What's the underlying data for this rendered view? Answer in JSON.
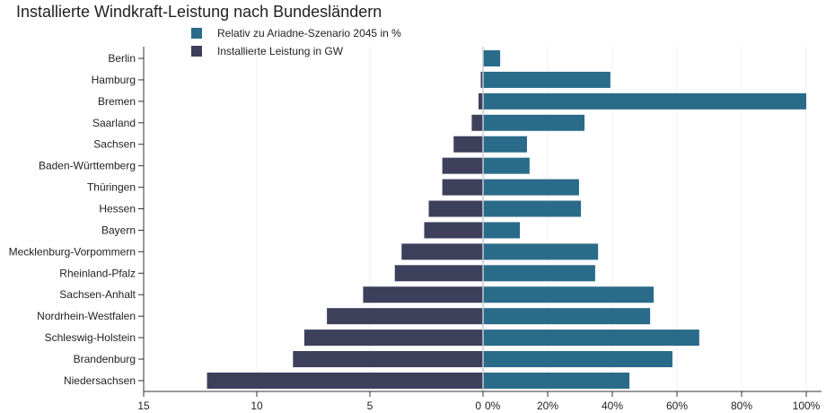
{
  "chart_data": {
    "type": "bar",
    "title": "Installierte Windkraft-Leistung nach Bundesländern",
    "legend_placement": "top-center",
    "categories": [
      "Berlin",
      "Hamburg",
      "Bremen",
      "Saarland",
      "Sachsen",
      "Baden-Württemberg",
      "Thüringen",
      "Hessen",
      "Bayern",
      "Mecklenburg-Vorpommern",
      "Rheinland-Pfalz",
      "Sachsen-Anhalt",
      "Nordrhein-Westfalen",
      "Schleswig-Holstein",
      "Brandenburg",
      "Niedersachsen"
    ],
    "series": [
      {
        "name": "Relativ zu Ariadne-Szenario 2045 in %",
        "color": "#2a6b8a",
        "values": [
          5.3,
          39.4,
          100,
          31.4,
          13.6,
          14.4,
          29.7,
          30.3,
          11.4,
          35.6,
          34.7,
          52.8,
          51.7,
          66.9,
          58.6,
          45.3
        ]
      },
      {
        "name": "Installierte Leistung in GW",
        "color": "#3d405b",
        "values": [
          0.01,
          0.1,
          0.2,
          0.5,
          1.3,
          1.8,
          1.8,
          2.4,
          2.6,
          3.6,
          3.9,
          5.3,
          6.9,
          7.9,
          8.4,
          12.2
        ]
      }
    ],
    "left_axis": {
      "range": [
        15,
        0
      ],
      "ticks": [
        15,
        10,
        5,
        0
      ],
      "tick_labels": [
        "15",
        "10",
        "5",
        "0"
      ]
    },
    "right_axis": {
      "range": [
        0,
        100
      ],
      "ticks": [
        0,
        20,
        40,
        60,
        80,
        100
      ],
      "tick_labels": [
        "0%",
        "20%",
        "40%",
        "60%",
        "80%",
        "100%"
      ]
    }
  }
}
